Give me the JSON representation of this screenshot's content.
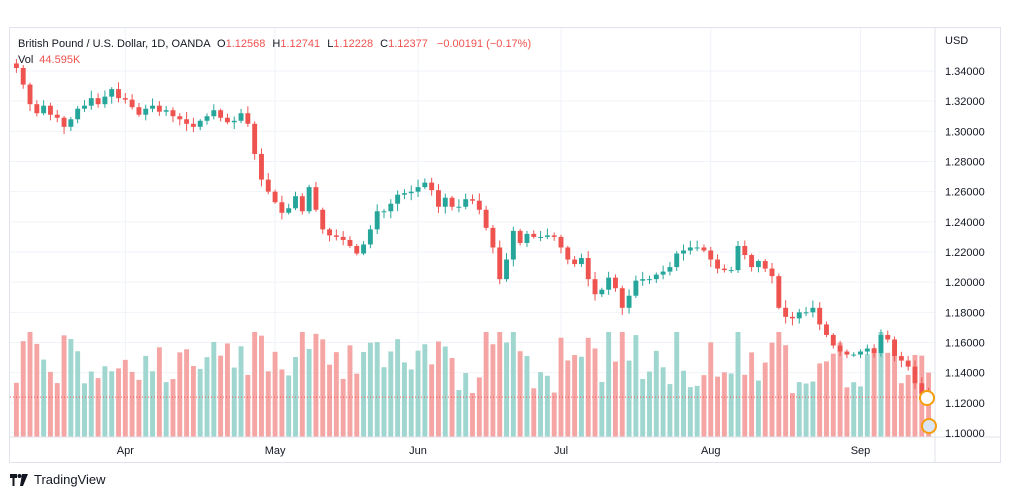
{
  "legend": {
    "symbol": "British Pound / U.S. Dollar, 1D, OANDA",
    "open_label": "O",
    "open": "1.12568",
    "high_label": "H",
    "high": "1.12741",
    "low_label": "L",
    "low": "1.12228",
    "close_label": "C",
    "close": "1.12377",
    "change": "−0.00191 (−0.17%)",
    "volume_label": "Vol",
    "volume": "44.595K"
  },
  "price_axis": {
    "currency": "USD",
    "ticks": [
      "1.34000",
      "1.32000",
      "1.30000",
      "1.28000",
      "1.26000",
      "1.24000",
      "1.22000",
      "1.20000",
      "1.18000",
      "1.16000",
      "1.14000",
      "1.12000",
      "1.10000"
    ]
  },
  "time_axis": {
    "ticks": [
      "Apr",
      "May",
      "Jun",
      "Jul",
      "Aug",
      "Sep"
    ]
  },
  "footer": {
    "brand": "TradingView"
  },
  "colors": {
    "up": "#26a69a",
    "down": "#ef5350",
    "vol_up": "#9fd6cf",
    "vol_down": "#f5a6a4",
    "grid": "#f0f3fa"
  },
  "chart_data": {
    "type": "candlestick",
    "title": "British Pound / U.S. Dollar, 1D, OANDA",
    "ylabel": "USD",
    "ylim": [
      1.1,
      1.35
    ],
    "series": [
      {
        "name": "GBP/USD",
        "close": [
          1.342,
          1.331,
          1.318,
          1.312,
          1.317,
          1.311,
          1.309,
          1.303,
          1.308,
          1.315,
          1.317,
          1.322,
          1.318,
          1.323,
          1.328,
          1.322,
          1.321,
          1.316,
          1.311,
          1.315,
          1.317,
          1.313,
          1.314,
          1.31,
          1.308,
          1.305,
          1.303,
          1.307,
          1.31,
          1.314,
          1.309,
          1.306,
          1.307,
          1.312,
          1.305,
          1.285,
          1.268,
          1.26,
          1.253,
          1.246,
          1.249,
          1.257,
          1.247,
          1.263,
          1.248,
          1.235,
          1.231,
          1.23,
          1.228,
          1.224,
          1.219,
          1.225,
          1.235,
          1.247,
          1.247,
          1.252,
          1.258,
          1.259,
          1.26,
          1.263,
          1.266,
          1.261,
          1.25,
          1.256,
          1.25,
          1.25,
          1.255,
          1.254,
          1.248,
          1.236,
          1.223,
          1.202,
          1.215,
          1.234,
          1.226,
          1.232,
          1.23,
          1.23,
          1.231,
          1.23,
          1.223,
          1.215,
          1.212,
          1.216,
          1.202,
          1.192,
          1.195,
          1.203,
          1.196,
          1.183,
          1.191,
          1.201,
          1.202,
          1.202,
          1.205,
          1.207,
          1.21,
          1.219,
          1.221,
          1.223,
          1.223,
          1.221,
          1.215,
          1.209,
          1.208,
          1.208,
          1.224,
          1.218,
          1.21,
          1.214,
          1.209,
          1.204,
          1.183,
          1.177,
          1.176,
          1.18,
          1.18,
          1.183,
          1.172,
          1.165,
          1.158,
          1.154,
          1.152,
          1.152,
          1.154,
          1.156,
          1.153,
          1.165,
          1.162,
          1.151,
          1.148,
          1.144,
          1.133,
          1.126,
          1.1238
        ]
      }
    ],
    "x_labels": [
      "Apr",
      "May",
      "Jun",
      "Jul",
      "Aug",
      "Sep"
    ]
  }
}
